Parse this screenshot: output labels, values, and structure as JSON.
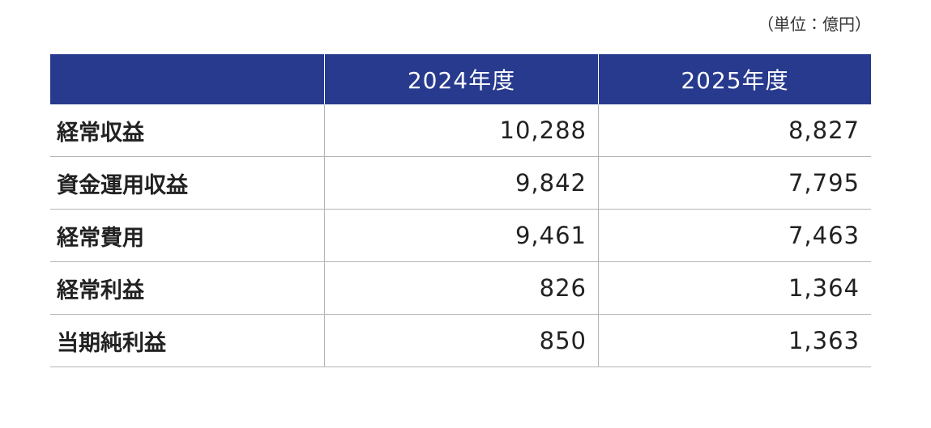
{
  "unit": "（単位：億円）",
  "table": {
    "header": [
      "2024年度",
      "2025年度"
    ],
    "rows": [
      [
        "経常収益",
        "10,288",
        "8,827"
      ],
      [
        "資金運用収益",
        "9,842",
        "7,795"
      ],
      [
        "経常費用",
        "9,461",
        "7,463"
      ],
      [
        "経常利益",
        "826",
        "1,364"
      ],
      [
        "当期純利益",
        "850",
        "1,363"
      ]
    ]
  }
}
